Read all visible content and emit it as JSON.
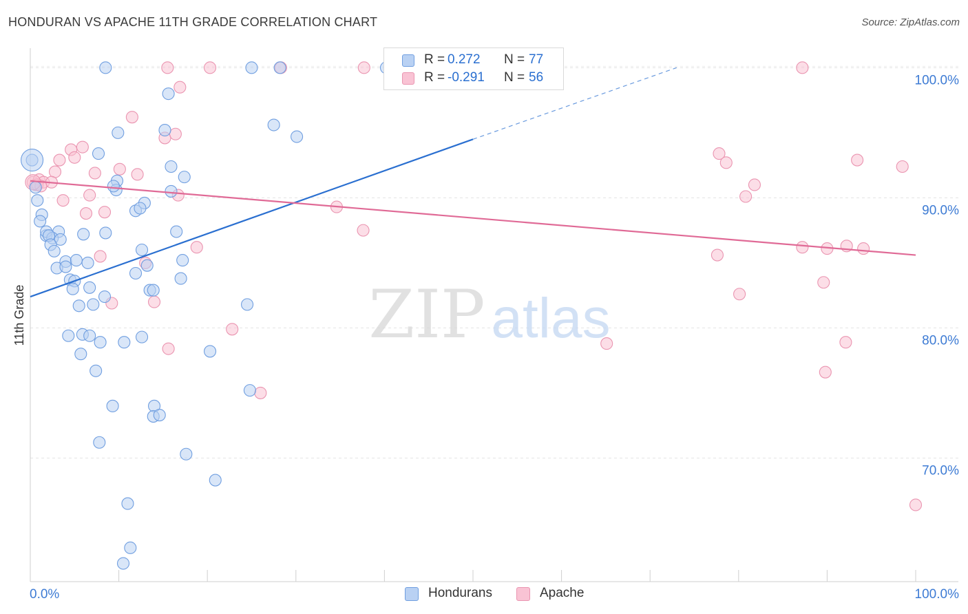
{
  "title": "HONDURAN VS APACHE 11TH GRADE CORRELATION CHART",
  "source": "Source: ZipAtlas.com",
  "watermark": {
    "zip": "ZIP",
    "atlas": "atlas"
  },
  "legend": {
    "r_label": "R =",
    "n_label": "N =",
    "rows": [
      {
        "r": "0.272",
        "n": "77",
        "fill": "#b9d1f3",
        "stroke": "#6f9ee0"
      },
      {
        "r": "-0.291",
        "n": "56",
        "fill": "#f9c3d4",
        "stroke": "#ea94b0"
      }
    ]
  },
  "bottom_legend": {
    "hondurans": "Hondurans",
    "apache": "Apache"
  },
  "chart_data": {
    "type": "scatter",
    "title": "HONDURAN VS APACHE 11TH GRADE CORRELATION CHART",
    "xlabel": "",
    "ylabel": "11th Grade",
    "xlim": [
      0,
      100
    ],
    "ylim": [
      60.5,
      101.5
    ],
    "x_tick_labels": [
      "0.0%",
      "100.0%"
    ],
    "y_ticks": [
      100,
      90,
      80,
      70
    ],
    "y_tick_labels": [
      "100.0%",
      "90.0%",
      "80.0%",
      "70.0%"
    ],
    "grid": true,
    "legend_position": "top-center",
    "series": [
      {
        "name": "Hondurans",
        "color": "#6f9ee0",
        "fill": "#b9d1f3",
        "line_color": "#2a6fd0",
        "R": 0.272,
        "N": 77,
        "trend": {
          "x0": 0,
          "y0": 82.4,
          "x1": 50,
          "y1": 94.5,
          "x_dash_end": 73,
          "y_dash_end": 100
        },
        "points": [
          [
            8.5,
            100
          ],
          [
            25,
            100
          ],
          [
            28.2,
            100
          ],
          [
            40.2,
            100
          ],
          [
            41.3,
            100
          ],
          [
            49.5,
            100
          ],
          [
            15.6,
            98
          ],
          [
            15.2,
            95.2
          ],
          [
            27.5,
            95.6
          ],
          [
            30.1,
            94.7
          ],
          [
            9.9,
            95
          ],
          [
            7.7,
            93.4
          ],
          [
            15.9,
            92.4
          ],
          [
            17.4,
            91.6
          ],
          [
            0.2,
            92.9
          ],
          [
            9.8,
            91.3
          ],
          [
            9.7,
            90.6
          ],
          [
            9.4,
            90.9
          ],
          [
            15.9,
            90.5
          ],
          [
            0.8,
            89.8
          ],
          [
            1.3,
            88.7
          ],
          [
            12.9,
            89.6
          ],
          [
            11.9,
            89
          ],
          [
            12.4,
            89.2
          ],
          [
            1.1,
            88.2
          ],
          [
            1.8,
            87.1
          ],
          [
            1.8,
            87.4
          ],
          [
            3.2,
            87.4
          ],
          [
            2.5,
            86.9
          ],
          [
            2.1,
            87.1
          ],
          [
            3.4,
            86.8
          ],
          [
            6,
            87.2
          ],
          [
            8.5,
            87.3
          ],
          [
            16.5,
            87.4
          ],
          [
            2.3,
            86.4
          ],
          [
            2.7,
            85.9
          ],
          [
            12.6,
            86
          ],
          [
            4,
            85.1
          ],
          [
            5.2,
            85.2
          ],
          [
            6.5,
            85
          ],
          [
            17.2,
            85.2
          ],
          [
            3,
            84.6
          ],
          [
            4,
            84.7
          ],
          [
            11.9,
            84.2
          ],
          [
            13.2,
            84.8
          ],
          [
            4.5,
            83.7
          ],
          [
            5,
            83.6
          ],
          [
            17,
            83.8
          ],
          [
            4.8,
            83
          ],
          [
            6.7,
            83.1
          ],
          [
            13.5,
            82.9
          ],
          [
            13.9,
            82.9
          ],
          [
            8.4,
            82.4
          ],
          [
            5.5,
            81.7
          ],
          [
            7.1,
            81.8
          ],
          [
            24.5,
            81.8
          ],
          [
            4.3,
            79.4
          ],
          [
            5.9,
            79.5
          ],
          [
            6.7,
            79.4
          ],
          [
            7.9,
            78.9
          ],
          [
            12.6,
            79.3
          ],
          [
            10.6,
            78.9
          ],
          [
            20.3,
            78.2
          ],
          [
            5.7,
            78
          ],
          [
            7.4,
            76.7
          ],
          [
            24.8,
            75.2
          ],
          [
            9.3,
            74
          ],
          [
            14,
            74
          ],
          [
            13.9,
            73.2
          ],
          [
            14.6,
            73.3
          ],
          [
            7.8,
            71.2
          ],
          [
            17.6,
            70.3
          ],
          [
            20.9,
            68.3
          ],
          [
            11,
            66.5
          ],
          [
            11.3,
            63.1
          ],
          [
            10.5,
            61.9
          ],
          [
            0.6,
            90.8
          ]
        ]
      },
      {
        "name": "Apache",
        "color": "#ea94b0",
        "fill": "#f9c3d4",
        "line_color": "#e06a96",
        "R": -0.291,
        "N": 56,
        "trend": {
          "x0": 0,
          "y0": 91.3,
          "x1": 100,
          "y1": 85.6
        },
        "points": [
          [
            15.5,
            100
          ],
          [
            20.3,
            100
          ],
          [
            28.3,
            100
          ],
          [
            37.7,
            100
          ],
          [
            87.2,
            100
          ],
          [
            16.9,
            98.5
          ],
          [
            11.5,
            96.2
          ],
          [
            15.2,
            94.6
          ],
          [
            16.4,
            94.9
          ],
          [
            4.6,
            93.7
          ],
          [
            5.9,
            93.9
          ],
          [
            3.3,
            92.9
          ],
          [
            5,
            93.1
          ],
          [
            12.1,
            91.8
          ],
          [
            10.1,
            92.2
          ],
          [
            7.3,
            91.9
          ],
          [
            2.8,
            92
          ],
          [
            0.3,
            91.2
          ],
          [
            0.6,
            91
          ],
          [
            1,
            91.4
          ],
          [
            1.5,
            91.2
          ],
          [
            2.4,
            91.2
          ],
          [
            3.7,
            89.8
          ],
          [
            6.7,
            90.2
          ],
          [
            16.7,
            90.2
          ],
          [
            6.3,
            88.8
          ],
          [
            8.4,
            88.9
          ],
          [
            34.6,
            89.3
          ],
          [
            18.8,
            86.2
          ],
          [
            37.6,
            87.5
          ],
          [
            7.9,
            85.5
          ],
          [
            13,
            85
          ],
          [
            9.2,
            81.9
          ],
          [
            14,
            82
          ],
          [
            15.6,
            78.4
          ],
          [
            22.8,
            79.9
          ],
          [
            26,
            75
          ],
          [
            77.8,
            93.4
          ],
          [
            78.6,
            92.7
          ],
          [
            93.4,
            92.9
          ],
          [
            98.5,
            92.4
          ],
          [
            81.8,
            91
          ],
          [
            80.8,
            90.1
          ],
          [
            87.2,
            86.2
          ],
          [
            90,
            86.1
          ],
          [
            92.2,
            86.3
          ],
          [
            94.1,
            86.1
          ],
          [
            77.6,
            85.6
          ],
          [
            80.1,
            82.6
          ],
          [
            89.6,
            83.5
          ],
          [
            65.1,
            78.8
          ],
          [
            92.1,
            78.9
          ],
          [
            89.8,
            76.6
          ],
          [
            100,
            66.4
          ],
          [
            0.8,
            91.0
          ],
          [
            1.2,
            90.9
          ]
        ]
      }
    ]
  }
}
